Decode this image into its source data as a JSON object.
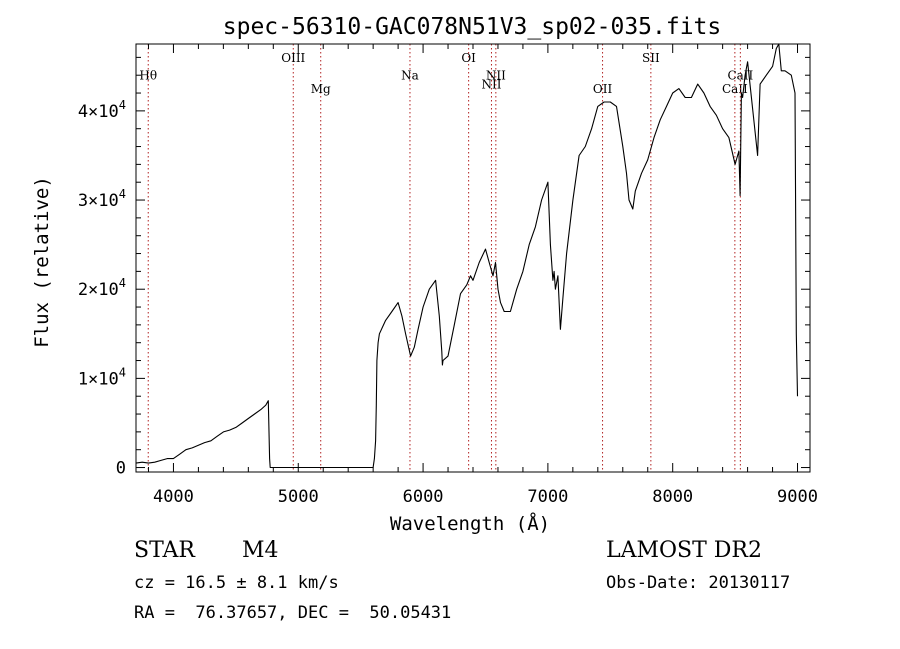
{
  "chart_data": {
    "type": "line",
    "title": "spec-56310-GAC078N51V3_sp02-035.fits",
    "xlabel": "Wavelength (Å)",
    "ylabel": "Flux (relative)",
    "xlim": [
      3700,
      9100
    ],
    "ylim": [
      -500,
      47500
    ],
    "x_ticks": [
      4000,
      5000,
      6000,
      7000,
      8000,
      9000
    ],
    "x_tick_labels": [
      "4000",
      "5000",
      "6000",
      "7000",
      "8000",
      "9000"
    ],
    "y_ticks": [
      0,
      10000,
      20000,
      30000,
      40000
    ],
    "y_tick_labels": [
      {
        "mantissa": "0",
        "exp": ""
      },
      {
        "mantissa": "1×10",
        "exp": "4"
      },
      {
        "mantissa": "2×10",
        "exp": "4"
      },
      {
        "mantissa": "3×10",
        "exp": "4"
      },
      {
        "mantissa": "4×10",
        "exp": "4"
      }
    ],
    "line_color": "#000000",
    "marker_color": "#b22222",
    "series": [
      {
        "x": [
          3700,
          3750,
          3800,
          3850,
          3900,
          3950,
          4000,
          4050,
          4100,
          4150,
          4200,
          4250,
          4300,
          4350,
          4400,
          4450,
          4500,
          4550,
          4600,
          4650,
          4700,
          4740,
          4760,
          4770,
          4775,
          4780,
          4800,
          5600,
          5610,
          5620,
          5625,
          5630,
          5640,
          5650,
          5700,
          5750,
          5800,
          5830,
          5860,
          5900,
          5930,
          5960,
          6000,
          6050,
          6100,
          6130,
          6150,
          6155,
          6160,
          6200,
          6250,
          6300,
          6350,
          6380,
          6400,
          6450,
          6500,
          6530,
          6560,
          6580,
          6600,
          6620,
          6650,
          6700,
          6750,
          6800,
          6850,
          6900,
          6950,
          7000,
          7020,
          7040,
          7050,
          7060,
          7080,
          7100,
          7120,
          7150,
          7200,
          7250,
          7300,
          7350,
          7400,
          7450,
          7500,
          7550,
          7600,
          7630,
          7650,
          7680,
          7700,
          7750,
          7800,
          7850,
          7900,
          7950,
          8000,
          8050,
          8100,
          8150,
          8200,
          8250,
          8300,
          8350,
          8400,
          8450,
          8500,
          8530,
          8540,
          8550,
          8560,
          8580,
          8600,
          8650,
          8680,
          8700,
          8750,
          8800,
          8830,
          8850,
          8870,
          8900,
          8950,
          8980,
          8990,
          9000
        ],
        "y": [
          500,
          600,
          500,
          600,
          800,
          1000,
          1000,
          1500,
          2000,
          2200,
          2500,
          2800,
          3000,
          3500,
          4000,
          4200,
          4500,
          5000,
          5500,
          6000,
          6500,
          7000,
          7500,
          1000,
          0,
          0,
          0,
          0,
          1000,
          3000,
          7000,
          12000,
          14000,
          15000,
          16500,
          17500,
          18500,
          17000,
          15000,
          12500,
          13500,
          15500,
          18000,
          20000,
          21000,
          17000,
          13000,
          11500,
          12000,
          12500,
          16000,
          19500,
          20500,
          21500,
          21000,
          23000,
          24500,
          23000,
          21500,
          23000,
          20000,
          18500,
          17500,
          17500,
          20000,
          22000,
          25000,
          27000,
          30000,
          32000,
          25000,
          21000,
          22000,
          20000,
          21500,
          15500,
          19000,
          24000,
          30000,
          35000,
          36000,
          38000,
          40500,
          41000,
          41000,
          40500,
          36000,
          33000,
          30000,
          29000,
          31000,
          33000,
          34500,
          37000,
          39000,
          40500,
          42000,
          42500,
          41500,
          41500,
          43000,
          42000,
          40500,
          39500,
          38000,
          37000,
          34000,
          35500,
          30500,
          42000,
          41500,
          44000,
          45500,
          39000,
          35000,
          43000,
          44000,
          45000,
          47000,
          48000,
          44500,
          44500,
          44000,
          42000,
          15000,
          8000
        ]
      }
    ],
    "annotations": [
      {
        "label": "Hθ",
        "x": 3798,
        "label_y": 43500
      },
      {
        "label": "OIII",
        "x": 4960,
        "label_y": 45500
      },
      {
        "label": "Mg",
        "x": 5180,
        "label_y": 42000
      },
      {
        "label": "Na",
        "x": 5895,
        "label_y": 43500
      },
      {
        "label": "OI",
        "x": 6365,
        "label_y": 45500
      },
      {
        "label": "NII",
        "x": 6548,
        "label_y": 42500
      },
      {
        "label": "NII",
        "x": 6583,
        "label_y": 43500
      },
      {
        "label": "OII",
        "x": 7438,
        "label_y": 42000
      },
      {
        "label": "SII",
        "x": 7825,
        "label_y": 45500
      },
      {
        "label": "CaII",
        "x": 8498,
        "label_y": 42000
      },
      {
        "label": "CaII",
        "x": 8542,
        "label_y": 43500
      }
    ]
  },
  "info": {
    "object_class": "STAR",
    "subclass": "M4",
    "survey": "LAMOST DR2",
    "cz": "cz = 16.5 ± 8.1 km/s",
    "obs_date": "Obs-Date: 20130117",
    "coords": "RA =  76.37657, DEC =  50.05431"
  }
}
